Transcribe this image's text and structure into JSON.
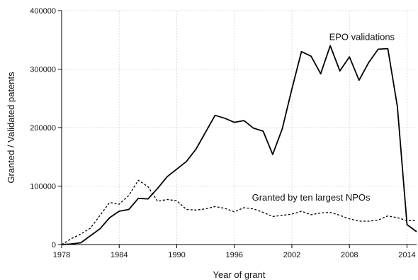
{
  "chart_data": {
    "type": "line",
    "xlabel": "Year of grant",
    "ylabel": "Granted / Validated patents",
    "xlim": [
      1978,
      2015
    ],
    "ylim": [
      0,
      400000
    ],
    "x_ticks": [
      1978,
      1984,
      1990,
      1996,
      2002,
      2008,
      2014
    ],
    "y_ticks": [
      0,
      100000,
      200000,
      300000,
      400000
    ],
    "grid": true,
    "legend": "none",
    "series": [
      {
        "name": "EPO validations",
        "style": "solid",
        "color": "#000000",
        "x": [
          1978,
          1979,
          1980,
          1981,
          1982,
          1983,
          1984,
          1985,
          1986,
          1987,
          1988,
          1989,
          1990,
          1991,
          1992,
          1993,
          1994,
          1995,
          1996,
          1997,
          1998,
          1999,
          2000,
          2001,
          2002,
          2003,
          2004,
          2005,
          2006,
          2007,
          2008,
          2009,
          2010,
          2011,
          2012,
          2013,
          2014,
          2015
        ],
        "values": [
          0,
          1000,
          3000,
          15000,
          27000,
          46000,
          57000,
          60000,
          79000,
          78000,
          96000,
          116000,
          129000,
          142000,
          163000,
          192000,
          221000,
          216000,
          209000,
          212000,
          199000,
          194000,
          154000,
          198000,
          266000,
          330000,
          322000,
          292000,
          340000,
          297000,
          321000,
          281000,
          311000,
          334000,
          335000,
          236000,
          34000,
          22000
        ]
      },
      {
        "name": "Granted by ten largest NPOs",
        "style": "dashed",
        "color": "#000000",
        "x": [
          1978,
          1979,
          1980,
          1981,
          1982,
          1983,
          1984,
          1985,
          1986,
          1987,
          1988,
          1989,
          1990,
          1991,
          1992,
          1993,
          1994,
          1995,
          1996,
          1997,
          1998,
          1999,
          2000,
          2001,
          2002,
          2003,
          2004,
          2005,
          2006,
          2007,
          2008,
          2009,
          2010,
          2011,
          2012,
          2013,
          2014,
          2015
        ],
        "values": [
          0,
          10000,
          18000,
          28000,
          50000,
          72000,
          69000,
          84000,
          110000,
          99000,
          74000,
          77000,
          75000,
          60000,
          59000,
          61000,
          65000,
          62000,
          56000,
          63000,
          61000,
          55000,
          48000,
          50000,
          52000,
          57000,
          51000,
          54000,
          55000,
          50000,
          44000,
          40000,
          40000,
          42000,
          49000,
          46000,
          41000,
          41000
        ]
      }
    ],
    "annotations": [
      {
        "text": "EPO validations",
        "x": 2009.3,
        "y": 350000,
        "anchor": "middle"
      },
      {
        "text": "Granted by ten largest NPOs",
        "x": 2004.0,
        "y": 75000,
        "anchor": "middle"
      }
    ]
  }
}
